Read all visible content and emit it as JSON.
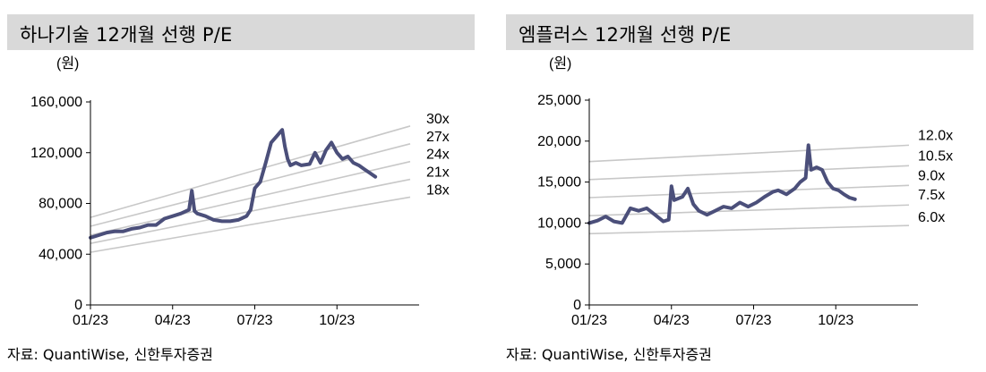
{
  "chart_data": [
    {
      "type": "line",
      "title": "하나기술 12개월 선행 P/E",
      "unit_label": "(원)",
      "source": "자료: QuantiWise, 신한투자증권",
      "ylim": [
        0,
        160000
      ],
      "yticks": [
        "0",
        "40,000",
        "80,000",
        "120,000",
        "160,000"
      ],
      "yticks_values": [
        0,
        40000,
        80000,
        120000,
        160000
      ],
      "xlim": [
        0,
        12
      ],
      "xticks": [
        "01/23",
        "04/23",
        "07/23",
        "10/23"
      ],
      "xticks_values": [
        0,
        3,
        6,
        9
      ],
      "bands": [
        {
          "label": "30x",
          "y0": 69000,
          "y1": 141000
        },
        {
          "label": "27x",
          "y0": 62000,
          "y1": 127000
        },
        {
          "label": "24x",
          "y0": 55000,
          "y1": 113000
        },
        {
          "label": "21x",
          "y0": 48500,
          "y1": 99000
        },
        {
          "label": "18x",
          "y0": 41500,
          "y1": 85000
        }
      ],
      "price": {
        "x": [
          0,
          0.3,
          0.6,
          0.9,
          1.2,
          1.5,
          1.8,
          2.1,
          2.4,
          2.7,
          3.0,
          3.3,
          3.6,
          3.7,
          3.8,
          3.9,
          4.2,
          4.5,
          4.8,
          5.1,
          5.4,
          5.7,
          5.85,
          6.0,
          6.2,
          6.4,
          6.6,
          6.8,
          7.0,
          7.1,
          7.2,
          7.3,
          7.5,
          7.7,
          8.0,
          8.2,
          8.4,
          8.6,
          8.8,
          9.0,
          9.2,
          9.4,
          9.6,
          9.8,
          10.0,
          10.2,
          10.4
        ],
        "y": [
          53000,
          55000,
          57000,
          58000,
          58000,
          60000,
          61000,
          63000,
          63000,
          68000,
          70000,
          72000,
          75000,
          90000,
          74000,
          72000,
          70000,
          67000,
          66000,
          66000,
          67000,
          70000,
          75000,
          92000,
          97000,
          112000,
          128000,
          133000,
          138000,
          125000,
          115000,
          110000,
          112000,
          110000,
          111000,
          120000,
          112000,
          122000,
          128000,
          120000,
          115000,
          117000,
          112000,
          110000,
          107000,
          104000,
          101000
        ]
      }
    },
    {
      "type": "line",
      "title": "엠플러스 12개월 선행 P/E",
      "unit_label": "(원)",
      "source": "자료: QuantiWise, 신한투자증권",
      "ylim": [
        0,
        25000
      ],
      "yticks": [
        "0",
        "5,000",
        "10,000",
        "15,000",
        "20,000",
        "25,000"
      ],
      "yticks_values": [
        0,
        5000,
        10000,
        15000,
        20000,
        25000
      ],
      "xlim": [
        0,
        12
      ],
      "xticks": [
        "01/23",
        "04/23",
        "07/23",
        "10/23"
      ],
      "xticks_values": [
        0,
        3,
        6,
        9
      ],
      "bands": [
        {
          "label": "12.0x",
          "y0": 17500,
          "y1": 19500
        },
        {
          "label": "10.5x",
          "y0": 15300,
          "y1": 17000
        },
        {
          "label": "9.0x",
          "y0": 13100,
          "y1": 14600
        },
        {
          "label": "7.5x",
          "y0": 10900,
          "y1": 12200
        },
        {
          "label": "6.0x",
          "y0": 8700,
          "y1": 9700
        }
      ],
      "price": {
        "x": [
          0,
          0.3,
          0.6,
          0.9,
          1.2,
          1.5,
          1.8,
          2.1,
          2.4,
          2.7,
          2.9,
          3.0,
          3.1,
          3.4,
          3.6,
          3.8,
          4.0,
          4.3,
          4.6,
          4.9,
          5.2,
          5.5,
          5.8,
          6.1,
          6.4,
          6.7,
          6.9,
          7.2,
          7.5,
          7.7,
          7.9,
          8.0,
          8.1,
          8.3,
          8.5,
          8.7,
          8.9,
          9.1,
          9.3,
          9.5,
          9.7
        ],
        "y": [
          10000,
          10300,
          10800,
          10200,
          10000,
          11800,
          11500,
          11800,
          11000,
          10200,
          10400,
          14500,
          12800,
          13200,
          14200,
          12300,
          11500,
          11000,
          11500,
          12000,
          11800,
          12500,
          12000,
          12500,
          13200,
          13800,
          14000,
          13500,
          14200,
          15000,
          15500,
          19500,
          16500,
          16800,
          16500,
          15000,
          14200,
          14000,
          13500,
          13100,
          12900
        ]
      }
    }
  ],
  "colors": {
    "series": "#4b4f7a",
    "band": "#c8c8c8",
    "axis": "#000000",
    "title_bg": "#d9d9d9"
  }
}
